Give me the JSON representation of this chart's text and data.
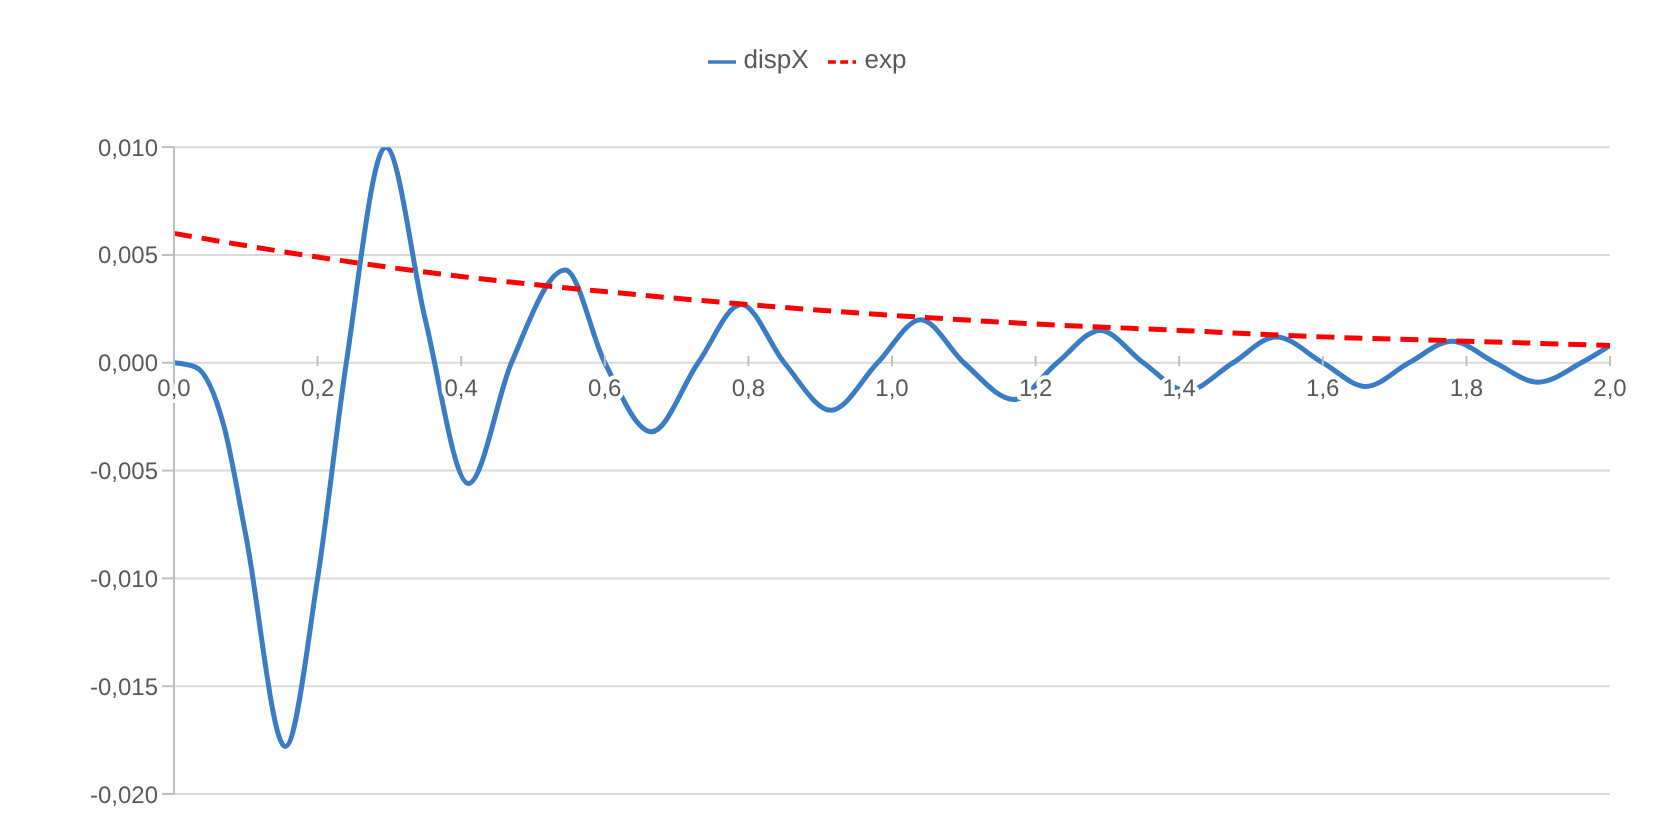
{
  "chart_data": {
    "type": "line",
    "legend": "top",
    "grid": "y",
    "marker": "none",
    "xlim": [
      0,
      2
    ],
    "xticks": [
      {
        "value": 0,
        "label": "0,0"
      },
      {
        "value": 0.2,
        "label": "0,2"
      },
      {
        "value": 0.4,
        "label": "0,4"
      },
      {
        "value": 0.6,
        "label": "0,6"
      },
      {
        "value": 0.8,
        "label": "0,8"
      },
      {
        "value": 1,
        "label": "1,0"
      },
      {
        "value": 1.2,
        "label": "1,2"
      },
      {
        "value": 1.4,
        "label": "1,4"
      },
      {
        "value": 1.6,
        "label": "1,6"
      },
      {
        "value": 1.8,
        "label": "1,8"
      },
      {
        "value": 2,
        "label": "2,0"
      }
    ],
    "ylim": [
      -0.02,
      0.01
    ],
    "yticks": [
      {
        "value": -0.02,
        "label": "-0,020"
      },
      {
        "value": -0.015,
        "label": "-0,015"
      },
      {
        "value": -0.01,
        "label": "-0,010"
      },
      {
        "value": -0.005,
        "label": "-0,005"
      },
      {
        "value": 0,
        "label": "0,000"
      },
      {
        "value": 0.005,
        "label": "0,005"
      },
      {
        "value": 0.01,
        "label": "0,010"
      }
    ],
    "series": [
      {
        "name": "dispX",
        "color": "#3a7dc4",
        "line_style": "solid",
        "x": [
          0,
          0.03,
          0.07,
          0.1,
          0.155,
          0.2,
          0.24,
          0.295,
          0.35,
          0.41,
          0.47,
          0.545,
          0.6,
          0.665,
          0.73,
          0.79,
          0.85,
          0.915,
          0.98,
          1.04,
          1.1,
          1.17,
          1.23,
          1.29,
          1.35,
          1.41,
          1.475,
          1.535,
          1.6,
          1.66,
          1.72,
          1.78,
          1.84,
          1.9,
          1.96,
          2
        ],
        "values": [
          0,
          -0.0002,
          -0.003,
          -0.008,
          -0.0178,
          -0.01,
          0,
          0.01,
          0.002,
          -0.0056,
          0,
          0.0043,
          0,
          -0.0032,
          0,
          0.0027,
          0,
          -0.0022,
          0,
          0.002,
          0,
          -0.0017,
          0,
          0.0015,
          0,
          -0.0013,
          0,
          0.0012,
          0,
          -0.0011,
          0,
          0.001,
          0,
          -0.0009,
          0,
          0.0008
        ]
      },
      {
        "name": "exp",
        "color": "#ff0000",
        "line_style": "dashed",
        "x": [
          0,
          0.2,
          0.4,
          0.6,
          0.8,
          1,
          1.2,
          1.4,
          1.6,
          1.8,
          2
        ],
        "values": [
          0.006,
          0.0049,
          0.004,
          0.0033,
          0.0027,
          0.0022,
          0.0018,
          0.0015,
          0.0012,
          0.001,
          0.0008
        ]
      }
    ]
  }
}
